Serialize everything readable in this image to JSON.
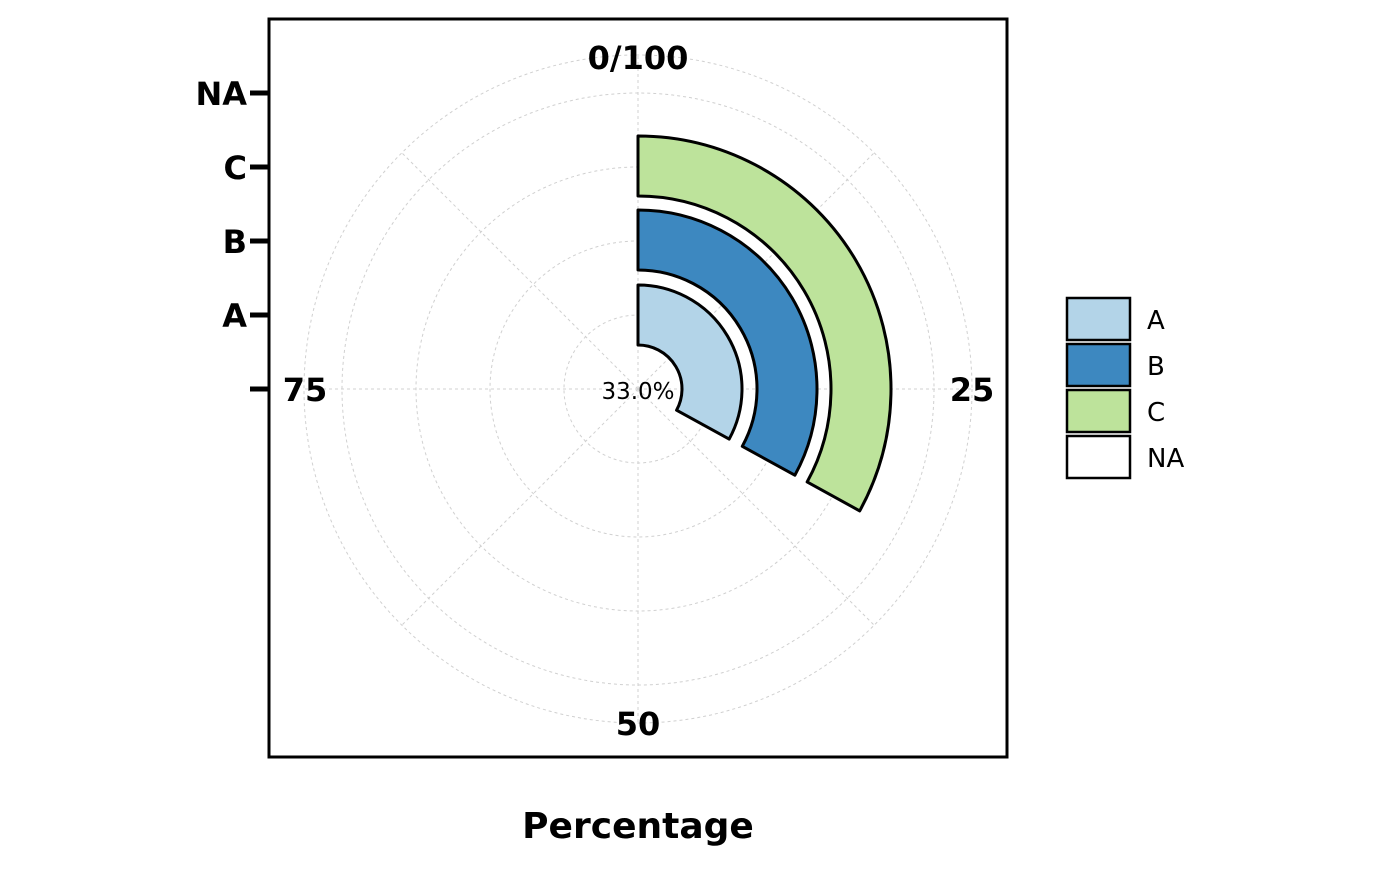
{
  "chart_data": {
    "type": "radial-bar",
    "xlabel": "Percentage",
    "angle_ticks": [
      "0/100",
      "25",
      "50",
      "75"
    ],
    "categories": [
      "A",
      "B",
      "C"
    ],
    "values": [
      33.0,
      33.0,
      33.0
    ],
    "radial_ticks": [
      "NA",
      "C",
      "B",
      "A",
      ""
    ],
    "center_label": "33.0%",
    "legend": [
      {
        "name": "A",
        "color": "#b3d4e8"
      },
      {
        "name": "B",
        "color": "#3d88c0"
      },
      {
        "name": "C",
        "color": "#bde39b"
      },
      {
        "name": "NA",
        "color": "#ffffff"
      }
    ],
    "grid": true
  }
}
